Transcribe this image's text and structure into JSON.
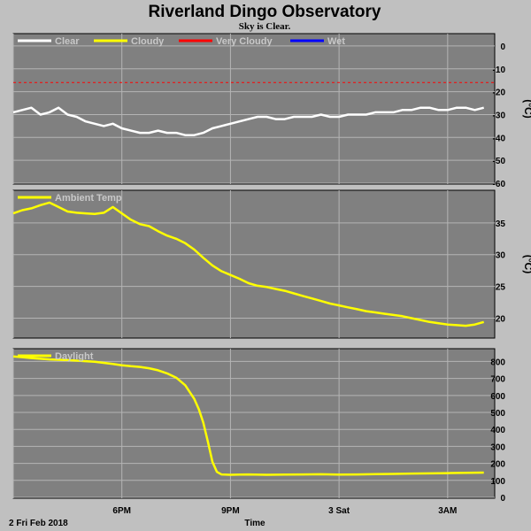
{
  "header": {
    "title": "Riverland Dingo Observatory",
    "subtitle": "Sky is Clear."
  },
  "footer": {
    "date": "2 Fri Feb 2018",
    "xlabel": "Time"
  },
  "colors": {
    "page_bg": "#c0c0c0",
    "plot_bg": "#808080",
    "grid": "#b4b4b4",
    "clear": "#ffffff",
    "cloudy": "#ffff00",
    "very_cloudy": "#ff0000",
    "wet": "#0000ff",
    "ambient": "#ffff00",
    "daylight": "#ffff00"
  },
  "chart_data": [
    {
      "type": "line",
      "id": "sky",
      "legend": [
        "Clear",
        "Cloudy",
        "Very Cloudy",
        "Wet"
      ],
      "legend_placement": "top-left",
      "ylabel": "(°C)",
      "ylim": [
        -60,
        5
      ],
      "yticks": [
        0,
        -10,
        -20,
        -30,
        -40,
        -50,
        -60
      ],
      "grid": true,
      "threshold": {
        "name": "Very Cloudy",
        "y": -16
      },
      "x_hours": [
        0,
        0.5,
        1,
        1.5,
        2,
        2.5,
        3,
        3.5,
        4,
        4.5,
        5,
        5.5,
        6,
        6.5,
        7,
        7.5,
        8,
        8.5,
        9,
        9.5,
        10,
        10.5,
        11,
        11.5,
        12,
        12.5,
        13,
        13.5,
        14,
        14.5,
        15,
        15.5,
        16,
        16.5,
        17,
        17.5,
        18,
        18.5,
        19,
        19.5,
        20,
        20.5,
        21,
        21.5,
        22,
        22.5,
        23,
        23.5,
        24,
        24.5,
        25,
        25.5,
        26
      ],
      "series": [
        {
          "name": "Clear",
          "values": [
            -29,
            -28,
            -27,
            -30,
            -29,
            -27,
            -30,
            -31,
            -33,
            -34,
            -35,
            -34,
            -36,
            -37,
            -38,
            -38,
            -37,
            -38,
            -38,
            -39,
            -39,
            -38,
            -36,
            -35,
            -34,
            -33,
            -32,
            -31,
            -31,
            -32,
            -32,
            -31,
            -31,
            -31,
            -30,
            -31,
            -31,
            -30,
            -30,
            -30,
            -29,
            -29,
            -29,
            -28,
            -28,
            -27,
            -27,
            -28,
            -28,
            -27,
            -27,
            -28,
            -27
          ]
        }
      ]
    },
    {
      "type": "line",
      "id": "ambient",
      "legend": [
        "Ambient Temp"
      ],
      "legend_placement": "top-left",
      "ylabel": "(°C)",
      "ylim": [
        17,
        40
      ],
      "yticks": [
        35,
        30,
        25,
        20
      ],
      "grid": true,
      "x_hours": [
        0,
        0.5,
        1,
        1.5,
        2,
        2.5,
        3,
        3.5,
        4,
        4.5,
        5,
        5.5,
        6,
        6.5,
        7,
        7.5,
        8,
        8.5,
        9,
        9.5,
        10,
        10.5,
        11,
        11.5,
        12,
        12.5,
        13,
        13.5,
        14,
        14.5,
        15,
        15.5,
        16,
        16.5,
        17,
        17.5,
        18,
        18.5,
        19,
        19.5,
        20,
        20.5,
        21,
        21.5,
        22,
        22.5,
        23,
        23.5,
        24,
        24.5,
        25,
        25.5,
        26
      ],
      "series": [
        {
          "name": "Ambient Temp",
          "values": [
            36.5,
            37.0,
            37.3,
            37.8,
            38.2,
            37.5,
            36.8,
            36.6,
            36.5,
            36.4,
            36.6,
            37.5,
            36.5,
            35.5,
            34.8,
            34.5,
            33.7,
            33.0,
            32.5,
            31.8,
            30.8,
            29.5,
            28.3,
            27.4,
            26.8,
            26.2,
            25.5,
            25.1,
            24.9,
            24.6,
            24.3,
            23.9,
            23.5,
            23.1,
            22.7,
            22.3,
            22.0,
            21.7,
            21.4,
            21.1,
            20.9,
            20.7,
            20.5,
            20.3,
            20.0,
            19.7,
            19.4,
            19.2,
            19.0,
            18.9,
            18.8,
            19.0,
            19.4
          ]
        }
      ]
    },
    {
      "type": "line",
      "id": "daylight",
      "legend": [
        "Daylight"
      ],
      "legend_placement": "top-left",
      "ylim": [
        0,
        870
      ],
      "yticks": [
        800,
        700,
        600,
        500,
        400,
        300,
        200,
        100,
        0
      ],
      "grid": true,
      "xticks": [
        {
          "hour": 6,
          "label": "6PM"
        },
        {
          "hour": 12,
          "label": "9PM"
        },
        {
          "hour": 18,
          "label": "3 Sat"
        },
        {
          "hour": 24,
          "label": "3AM"
        }
      ],
      "x_hours": [
        0,
        0.5,
        1,
        1.5,
        2,
        2.5,
        3,
        3.5,
        4,
        4.5,
        5,
        5.5,
        6,
        6.5,
        7,
        7.5,
        8,
        8.5,
        9,
        9.5,
        10,
        10.25,
        10.5,
        10.75,
        11,
        11.25,
        11.5,
        12,
        12.5,
        13,
        14,
        15,
        16,
        17,
        18,
        19,
        20,
        21,
        22,
        23,
        24,
        25,
        26
      ],
      "series": [
        {
          "name": "Daylight",
          "values": [
            830,
            825,
            820,
            816,
            812,
            810,
            808,
            805,
            802,
            798,
            792,
            785,
            778,
            772,
            768,
            760,
            748,
            730,
            705,
            660,
            580,
            520,
            440,
            330,
            210,
            150,
            135,
            133,
            134,
            135,
            133,
            134,
            135,
            136,
            134,
            135,
            137,
            138,
            140,
            141,
            143,
            145,
            146
          ]
        }
      ]
    }
  ]
}
